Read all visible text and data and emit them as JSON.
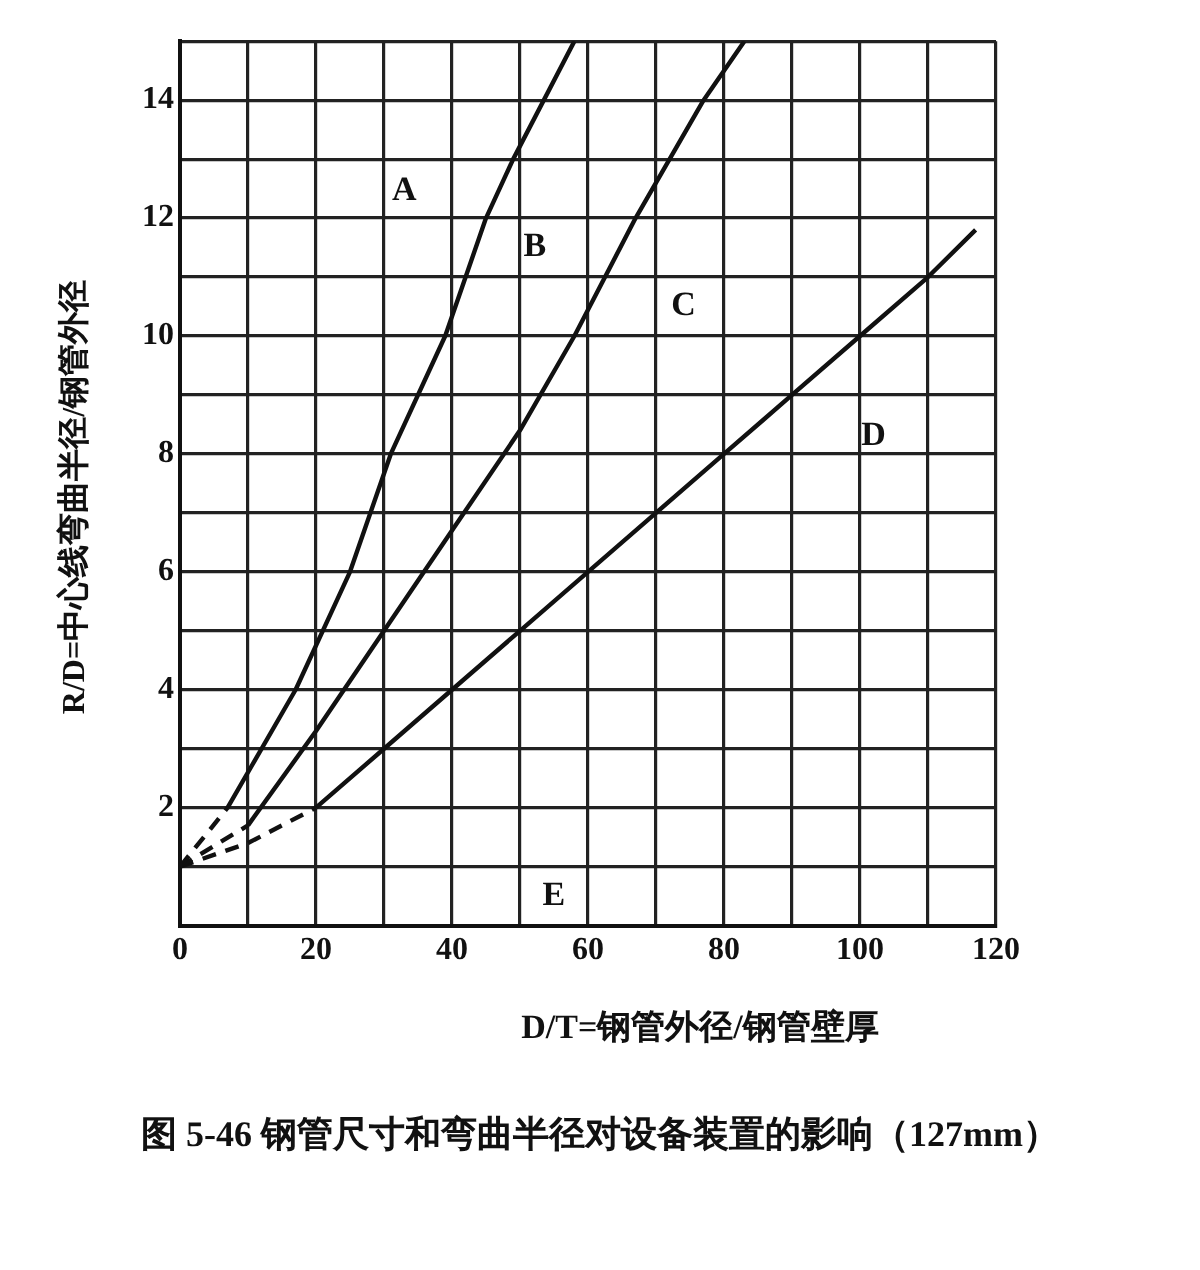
{
  "chart_data": {
    "type": "line",
    "title": "图 5-46  钢管尺寸和弯曲半径对设备装置的影响（127mm）",
    "xlabel": "D/T=钢管外径/钢管壁厚",
    "ylabel": "R/D=中心线弯曲半径/钢管外径",
    "series": [
      {
        "color": "#111111",
        "line_style": "dashed",
        "x": [
          0,
          7
        ],
        "values": [
          1,
          2
        ]
      },
      {
        "color": "#111111",
        "line_style": "solid",
        "x": [
          7,
          17,
          25,
          31,
          39,
          45,
          49,
          58
        ],
        "values": [
          2,
          4,
          6,
          8,
          10,
          12,
          13,
          15
        ]
      },
      {
        "color": "#111111",
        "line_style": "dashed",
        "x": [
          0,
          10
        ],
        "values": [
          1,
          1.7
        ]
      },
      {
        "color": "#111111",
        "line_style": "solid",
        "x": [
          10,
          20,
          30,
          40,
          50,
          58,
          67,
          77,
          83
        ],
        "values": [
          1.7,
          3.3,
          5,
          6.7,
          8.4,
          10,
          12,
          14,
          15
        ]
      },
      {
        "color": "#111111",
        "line_style": "dashed",
        "x": [
          0,
          10,
          20
        ],
        "values": [
          1,
          1.4,
          2
        ]
      },
      {
        "color": "#111111",
        "line_style": "solid",
        "x": [
          20,
          30,
          40,
          50,
          60,
          70,
          80,
          90,
          100,
          110,
          117
        ],
        "values": [
          2,
          3,
          4,
          5,
          6,
          7,
          8,
          9,
          10,
          11,
          11.8
        ]
      }
    ],
    "annotations": [
      "A",
      "B",
      "C",
      "D",
      "E"
    ],
    "xlim": [
      0,
      120
    ],
    "ylim": [
      0,
      15
    ],
    "xticks": [
      0,
      {
        "value": 10,
        "label": null
      },
      20,
      {
        "value": 30,
        "label": null
      },
      40,
      {
        "value": 50,
        "label": null
      },
      60,
      {
        "value": 70,
        "label": null
      },
      80,
      {
        "value": 90,
        "label": null
      },
      100,
      {
        "value": 110,
        "label": null
      },
      120
    ],
    "yticks": [
      {
        "value": 0,
        "label": null
      },
      {
        "value": 1,
        "label": null
      },
      2,
      {
        "value": 3,
        "label": null
      },
      4,
      {
        "value": 5,
        "label": null
      },
      6,
      {
        "value": 7,
        "label": null
      },
      8,
      {
        "value": 9,
        "label": null
      },
      10,
      {
        "value": 11,
        "label": null
      },
      12,
      {
        "value": 13,
        "label": null
      },
      14,
      {
        "value": 15,
        "label": null
      }
    ],
    "grid": true,
    "legend": false,
    "marker": "none"
  }
}
